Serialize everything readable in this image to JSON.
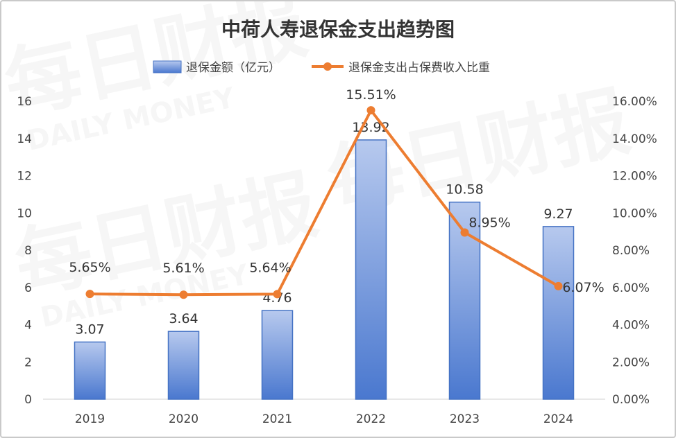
{
  "chart_data": {
    "type": "bar",
    "title": "中荷人寿退保金支出趋势图",
    "categories": [
      "2019",
      "2020",
      "2021",
      "2022",
      "2023",
      "2024"
    ],
    "series": [
      {
        "name": "退保金额（亿元）",
        "kind": "bar",
        "axis": "left",
        "values": [
          3.07,
          3.64,
          4.76,
          13.92,
          10.58,
          9.27
        ],
        "labels": [
          "3.07",
          "3.64",
          "4.76",
          "13.92",
          "10.58",
          "9.27"
        ],
        "color": "#4472c4"
      },
      {
        "name": "退保金支出占保费收入比重",
        "kind": "line",
        "axis": "right",
        "values": [
          5.65,
          5.61,
          5.64,
          15.51,
          8.95,
          6.07
        ],
        "labels": [
          "5.65%",
          "5.61%",
          "5.64%",
          "15.51%",
          "8.95%",
          "6.07%"
        ],
        "color": "#ed7d31"
      }
    ],
    "y_left": {
      "range": [
        0,
        16
      ],
      "ticks": [
        "0",
        "2",
        "4",
        "6",
        "8",
        "10",
        "12",
        "14",
        "16"
      ]
    },
    "y_right": {
      "range": [
        0,
        16
      ],
      "ticks": [
        "0.00%",
        "2.00%",
        "4.00%",
        "6.00%",
        "8.00%",
        "10.00%",
        "12.00%",
        "14.00%",
        "16.00%"
      ]
    },
    "legend_position": "top",
    "grid": false,
    "watermark": "每日财报 DAILY MONEY"
  }
}
